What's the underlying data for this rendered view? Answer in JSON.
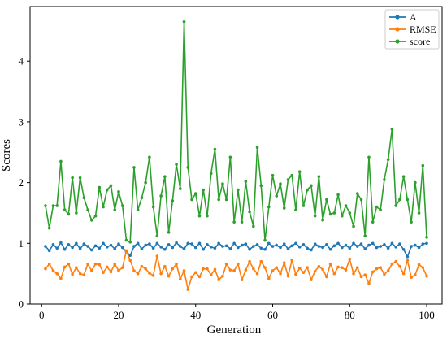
{
  "chart_data": {
    "type": "line",
    "xlabel": "Generation",
    "ylabel": "Scores",
    "xlim": [
      -3,
      104
    ],
    "ylim": [
      0,
      4.9
    ],
    "xticks": [
      0,
      20,
      40,
      60,
      80,
      100
    ],
    "xtick_labels": [
      "0",
      "20",
      "40",
      "60",
      "80",
      "100"
    ],
    "yticks": [
      0,
      1,
      2,
      3,
      4
    ],
    "ytick_labels": [
      "0",
      "1",
      "2",
      "3",
      "4"
    ],
    "grid": false,
    "legend_position": "top-right",
    "x": [
      1,
      2,
      3,
      4,
      5,
      6,
      7,
      8,
      9,
      10,
      11,
      12,
      13,
      14,
      15,
      16,
      17,
      18,
      19,
      20,
      21,
      22,
      23,
      24,
      25,
      26,
      27,
      28,
      29,
      30,
      31,
      32,
      33,
      34,
      35,
      36,
      37,
      38,
      39,
      40,
      41,
      42,
      43,
      44,
      45,
      46,
      47,
      48,
      49,
      50,
      51,
      52,
      53,
      54,
      55,
      56,
      57,
      58,
      59,
      60,
      61,
      62,
      63,
      64,
      65,
      66,
      67,
      68,
      69,
      70,
      71,
      72,
      73,
      74,
      75,
      76,
      77,
      78,
      79,
      80,
      81,
      82,
      83,
      84,
      85,
      86,
      87,
      88,
      89,
      90,
      91,
      92,
      93,
      94,
      95,
      96,
      97,
      98,
      99,
      100
    ],
    "series": [
      {
        "name": "A",
        "color": "#1f77b4",
        "values": [
          0.95,
          0.88,
          0.98,
          0.92,
          1.01,
          0.9,
          0.98,
          0.93,
          1.0,
          0.91,
          0.99,
          0.95,
          0.89,
          0.96,
          0.92,
          1.0,
          0.94,
          0.97,
          0.91,
          0.99,
          0.93,
          0.86,
          0.8,
          0.95,
          1.0,
          0.91,
          0.97,
          0.99,
          0.92,
          1.0,
          0.94,
          0.9,
          0.98,
          0.93,
          1.01,
          0.95,
          0.91,
          1.0,
          0.99,
          0.93,
          1.0,
          0.9,
          0.98,
          0.94,
          0.92,
          1.0,
          0.95,
          0.96,
          0.91,
          1.0,
          0.93,
          0.97,
          0.99,
          0.9,
          0.95,
          0.98,
          0.92,
          0.9,
          1.0,
          0.95,
          0.97,
          0.93,
          0.99,
          0.91,
          0.96,
          1.0,
          0.94,
          0.98,
          0.92,
          0.89,
          0.99,
          0.95,
          0.93,
          0.98,
          0.9,
          0.96,
          1.0,
          0.93,
          0.97,
          0.92,
          1.0,
          0.95,
          0.99,
          0.91,
          0.97,
          1.0,
          0.93,
          0.95,
          0.98,
          0.92,
          1.0,
          0.94,
          0.99,
          0.9,
          0.78,
          0.95,
          0.97,
          0.93,
          0.99,
          1.0
        ]
      },
      {
        "name": "RMSE",
        "color": "#ff7f0e",
        "values": [
          0.58,
          0.66,
          0.55,
          0.5,
          0.42,
          0.61,
          0.66,
          0.49,
          0.6,
          0.5,
          0.48,
          0.66,
          0.55,
          0.66,
          0.65,
          0.52,
          0.61,
          0.53,
          0.66,
          0.55,
          0.6,
          0.88,
          0.72,
          0.55,
          0.5,
          0.62,
          0.58,
          0.51,
          0.47,
          0.79,
          0.5,
          0.62,
          0.46,
          0.58,
          0.66,
          0.41,
          0.55,
          0.24,
          0.45,
          0.52,
          0.45,
          0.58,
          0.58,
          0.48,
          0.57,
          0.4,
          0.46,
          0.66,
          0.56,
          0.55,
          0.66,
          0.4,
          0.56,
          0.7,
          0.58,
          0.5,
          0.7,
          0.6,
          0.42,
          0.55,
          0.6,
          0.5,
          0.68,
          0.46,
          0.72,
          0.49,
          0.59,
          0.52,
          0.6,
          0.4,
          0.54,
          0.62,
          0.57,
          0.45,
          0.66,
          0.5,
          0.61,
          0.6,
          0.56,
          0.74,
          0.5,
          0.6,
          0.45,
          0.48,
          0.34,
          0.53,
          0.58,
          0.6,
          0.49,
          0.55,
          0.66,
          0.7,
          0.62,
          0.5,
          0.72,
          0.44,
          0.48,
          0.65,
          0.6,
          0.46
        ]
      },
      {
        "name": "score",
        "color": "#2ca02c",
        "values": [
          1.62,
          1.25,
          1.62,
          1.62,
          2.35,
          1.55,
          1.48,
          2.08,
          1.5,
          2.08,
          1.75,
          1.55,
          1.38,
          1.45,
          1.92,
          1.6,
          1.88,
          1.95,
          1.55,
          1.85,
          1.62,
          1.05,
          1.02,
          2.25,
          1.55,
          1.75,
          2.0,
          2.42,
          1.6,
          1.12,
          1.78,
          2.1,
          1.18,
          1.7,
          2.3,
          1.9,
          4.65,
          2.25,
          1.72,
          1.82,
          1.45,
          1.88,
          1.45,
          2.15,
          2.55,
          1.72,
          1.98,
          1.72,
          2.42,
          1.35,
          1.88,
          1.35,
          2.02,
          1.52,
          1.28,
          2.58,
          1.95,
          1.05,
          1.6,
          2.12,
          1.78,
          1.98,
          1.58,
          2.05,
          2.12,
          1.55,
          2.18,
          1.62,
          1.88,
          1.95,
          1.45,
          2.1,
          1.38,
          1.72,
          1.48,
          1.5,
          1.8,
          1.45,
          1.62,
          1.5,
          1.28,
          1.82,
          1.72,
          1.12,
          2.42,
          1.35,
          1.6,
          1.55,
          2.05,
          2.38,
          2.88,
          1.62,
          1.72,
          2.1,
          1.72,
          1.35,
          2.0,
          1.5,
          2.28,
          1.1
        ]
      }
    ]
  }
}
